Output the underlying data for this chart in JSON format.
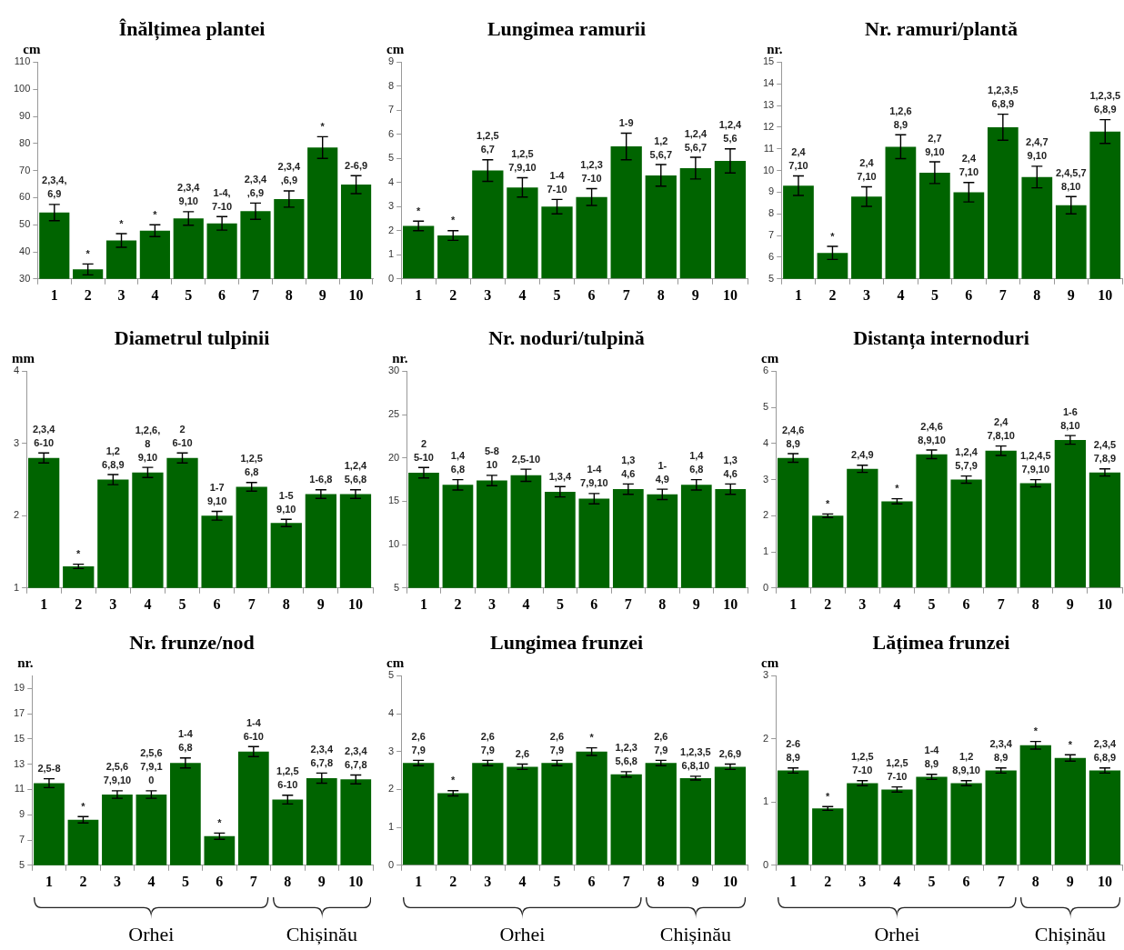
{
  "chart_data": [
    {
      "type": "bar",
      "title": "Înălțimea plantei",
      "ylabel": "cm",
      "categories": [
        "1",
        "2",
        "3",
        "4",
        "5",
        "6",
        "7",
        "8",
        "9",
        "10"
      ],
      "color": "#006400",
      "values": [
        54.5,
        33.5,
        44.2,
        47.8,
        52.3,
        50.5,
        55,
        59.5,
        78.5,
        64.8
      ],
      "errors": [
        3,
        2,
        2.5,
        2.2,
        2.5,
        2.5,
        3,
        3,
        4,
        3.3
      ],
      "annotations": [
        {
          "text": "2,3,4,\n6,9",
          "x": "1",
          "y": 54.5
        },
        {
          "text": "*",
          "x": "2",
          "y": 33.5
        },
        {
          "text": "*",
          "x": "3",
          "y": 44.2
        },
        {
          "text": "*",
          "x": "4",
          "y": 47.8
        },
        {
          "text": "2,3,4\n9,10",
          "x": "5",
          "y": 52.3
        },
        {
          "text": "1-4,\n7-10",
          "x": "6",
          "y": 50.5
        },
        {
          "text": "2,3,4\n,6,9",
          "x": "7",
          "y": 55
        },
        {
          "text": "2,3,4\n,6,9",
          "x": "8",
          "y": 59.5
        },
        {
          "text": "*",
          "x": "9",
          "y": 78.5
        },
        {
          "text": "2-6,9",
          "x": "10",
          "y": 64.8
        }
      ],
      "ylim": [
        30,
        110
      ],
      "yticks": [
        30,
        40,
        50,
        60,
        70,
        80,
        90,
        100,
        110
      ]
    },
    {
      "type": "bar",
      "title": "Lungimea ramurii",
      "ylabel": "cm",
      "categories": [
        "1",
        "2",
        "3",
        "4",
        "5",
        "6",
        "7",
        "8",
        "9",
        "10"
      ],
      "color": "#006400",
      "values": [
        2.2,
        1.8,
        4.5,
        3.8,
        3.0,
        3.4,
        5.5,
        4.3,
        4.6,
        4.9
      ],
      "errors": [
        0.2,
        0.2,
        0.45,
        0.4,
        0.3,
        0.35,
        0.55,
        0.45,
        0.45,
        0.5
      ],
      "annotations": [
        {
          "text": "*",
          "x": "1",
          "y": 2.2
        },
        {
          "text": "*",
          "x": "2",
          "y": 1.8
        },
        {
          "text": "1,2,5\n6,7",
          "x": "3",
          "y": 4.5
        },
        {
          "text": "1,2,5\n7,9,10",
          "x": "4",
          "y": 3.8
        },
        {
          "text": "1-4\n7-10",
          "x": "5",
          "y": 3.0
        },
        {
          "text": "1,2,3\n7-10",
          "x": "6",
          "y": 3.4
        },
        {
          "text": "1-9",
          "x": "7",
          "y": 5.5
        },
        {
          "text": "1,2\n5,6,7",
          "x": "8",
          "y": 4.3
        },
        {
          "text": "1,2,4\n5,6,7",
          "x": "9",
          "y": 4.6
        },
        {
          "text": "1,2,4\n5,6",
          "x": "10",
          "y": 4.9
        }
      ],
      "ylim": [
        0,
        9
      ],
      "yticks": [
        0,
        1,
        2,
        3,
        4,
        5,
        6,
        7,
        8,
        9
      ]
    },
    {
      "type": "bar",
      "title": "Nr. ramuri/plantă",
      "ylabel": "nr.",
      "categories": [
        "1",
        "2",
        "3",
        "4",
        "5",
        "6",
        "7",
        "8",
        "9",
        "10"
      ],
      "color": "#006400",
      "values": [
        9.3,
        6.2,
        8.8,
        11.1,
        9.9,
        9.0,
        12.0,
        9.7,
        8.4,
        11.8
      ],
      "errors": [
        0.45,
        0.3,
        0.45,
        0.55,
        0.5,
        0.45,
        0.6,
        0.5,
        0.4,
        0.55
      ],
      "annotations": [
        {
          "text": "2,4\n7,10",
          "x": "1",
          "y": 9.3
        },
        {
          "text": "*",
          "x": "2",
          "y": 6.2
        },
        {
          "text": "2,4\n7,10",
          "x": "3",
          "y": 8.8
        },
        {
          "text": "1,2,6\n8,9",
          "x": "4",
          "y": 11.1
        },
        {
          "text": "2,7\n9,10",
          "x": "5",
          "y": 9.9
        },
        {
          "text": "2,4\n7,10",
          "x": "6",
          "y": 9.0
        },
        {
          "text": "1,2,3,5\n6,8,9",
          "x": "7",
          "y": 12.0
        },
        {
          "text": "2,4,7\n9,10",
          "x": "8",
          "y": 9.7
        },
        {
          "text": "2,4,5,7\n8,10",
          "x": "9",
          "y": 8.4
        },
        {
          "text": "1,2,3,5\n6,8,9",
          "x": "10",
          "y": 11.8
        }
      ],
      "ylim": [
        5,
        15
      ],
      "yticks": [
        5,
        6,
        7,
        8,
        9,
        10,
        11,
        12,
        13,
        14,
        15
      ]
    },
    {
      "type": "bar",
      "title": "Diametrul tulpinii",
      "ylabel": "mm",
      "categories": [
        "1",
        "2",
        "3",
        "4",
        "5",
        "6",
        "7",
        "8",
        "9",
        "10"
      ],
      "color": "#006400",
      "values": [
        2.8,
        1.3,
        2.5,
        2.6,
        2.8,
        2.0,
        2.4,
        1.9,
        2.3,
        2.3
      ],
      "errors": [
        0.07,
        0.03,
        0.07,
        0.07,
        0.07,
        0.06,
        0.06,
        0.05,
        0.06,
        0.06
      ],
      "annotations": [
        {
          "text": "2,3,4\n6-10",
          "x": "1",
          "y": 2.8
        },
        {
          "text": "*",
          "x": "2",
          "y": 1.3
        },
        {
          "text": "1,2\n6,8,9",
          "x": "3",
          "y": 2.5
        },
        {
          "text": "1,2,6,\n8\n9,10",
          "x": "4",
          "y": 2.6
        },
        {
          "text": "2\n6-10",
          "x": "5",
          "y": 2.8
        },
        {
          "text": "1-7\n9,10",
          "x": "6",
          "y": 2.0
        },
        {
          "text": "1,2,5\n6,8",
          "x": "7",
          "y": 2.4
        },
        {
          "text": "1-5\n9,10",
          "x": "8",
          "y": 1.9
        },
        {
          "text": "1-6,8",
          "x": "9",
          "y": 2.3
        },
        {
          "text": "1,2,4\n5,6,8",
          "x": "10",
          "y": 2.3
        }
      ],
      "ylim": [
        1,
        4
      ],
      "yticks": [
        1,
        2,
        3,
        4
      ]
    },
    {
      "type": "bar",
      "title": "Nr. noduri/tulpină",
      "ylabel": "nr.",
      "categories": [
        "1",
        "2",
        "3",
        "4",
        "5",
        "6",
        "7",
        "8",
        "9",
        "10"
      ],
      "color": "#006400",
      "values": [
        18.3,
        16.9,
        17.4,
        18.0,
        16.1,
        15.3,
        16.4,
        15.8,
        16.9,
        16.4
      ],
      "errors": [
        0.6,
        0.6,
        0.6,
        0.7,
        0.6,
        0.6,
        0.6,
        0.6,
        0.6,
        0.6
      ],
      "annotations": [
        {
          "text": "2\n5-10",
          "x": "1",
          "y": 18.3
        },
        {
          "text": "1,4\n6,8",
          "x": "2",
          "y": 16.9
        },
        {
          "text": "5-8\n10",
          "x": "3",
          "y": 17.4
        },
        {
          "text": "2,5-10",
          "x": "4",
          "y": 18.0
        },
        {
          "text": "1,3,4",
          "x": "5",
          "y": 16.1
        },
        {
          "text": "1-4\n7,9,10",
          "x": "6",
          "y": 15.3
        },
        {
          "text": "1,3\n4,6",
          "x": "7",
          "y": 16.4
        },
        {
          "text": "1-\n4,9",
          "x": "8",
          "y": 15.8
        },
        {
          "text": "1,4\n6,8",
          "x": "9",
          "y": 16.9
        },
        {
          "text": "1,3\n4,6",
          "x": "10",
          "y": 16.4
        }
      ],
      "ylim": [
        5,
        30
      ],
      "yticks": [
        5,
        10,
        15,
        20,
        25,
        30
      ]
    },
    {
      "type": "bar",
      "title": "Distanța internoduri",
      "ylabel": "cm",
      "categories": [
        "1",
        "2",
        "3",
        "4",
        "5",
        "6",
        "7",
        "8",
        "9",
        "10"
      ],
      "color": "#006400",
      "values": [
        3.6,
        2.0,
        3.3,
        2.4,
        3.7,
        3.0,
        3.8,
        2.9,
        4.1,
        3.2
      ],
      "errors": [
        0.12,
        0.05,
        0.1,
        0.07,
        0.12,
        0.1,
        0.13,
        0.1,
        0.12,
        0.1
      ],
      "annotations": [
        {
          "text": "2,4,6\n8,9",
          "x": "1",
          "y": 3.6
        },
        {
          "text": "*",
          "x": "2",
          "y": 2.0
        },
        {
          "text": "2,4,9",
          "x": "3",
          "y": 3.3
        },
        {
          "text": "*",
          "x": "4",
          "y": 2.4
        },
        {
          "text": "2,4,6\n8,9,10",
          "x": "5",
          "y": 3.7
        },
        {
          "text": "1,2,4\n5,7,9",
          "x": "6",
          "y": 3.0
        },
        {
          "text": "2,4\n7,8,10",
          "x": "7",
          "y": 3.8
        },
        {
          "text": "1,2,4,5\n7,9,10",
          "x": "8",
          "y": 2.9
        },
        {
          "text": "1-6\n8,10",
          "x": "9",
          "y": 4.1
        },
        {
          "text": "2,4,5\n7,8,9",
          "x": "10",
          "y": 3.2
        }
      ],
      "ylim": [
        0,
        6
      ],
      "yticks": [
        0,
        1,
        2,
        3,
        4,
        5,
        6
      ]
    },
    {
      "type": "bar",
      "title": "Nr. frunze/nod",
      "ylabel": "nr.",
      "categories": [
        "1",
        "2",
        "3",
        "4",
        "5",
        "6",
        "7",
        "8",
        "9",
        "10"
      ],
      "color": "#006400",
      "values": [
        11.5,
        8.6,
        10.6,
        10.6,
        13.1,
        7.3,
        14.0,
        10.2,
        11.9,
        11.8
      ],
      "errors": [
        0.35,
        0.25,
        0.3,
        0.3,
        0.4,
        0.25,
        0.4,
        0.35,
        0.4,
        0.35
      ],
      "annotations": [
        {
          "text": "2,5-8",
          "x": "1",
          "y": 11.5
        },
        {
          "text": "*",
          "x": "2",
          "y": 8.6
        },
        {
          "text": "2,5,6\n7,9,10",
          "x": "3",
          "y": 10.6
        },
        {
          "text": "2,5,6\n7,9,1\n0",
          "x": "4",
          "y": 10.6
        },
        {
          "text": "1-4\n6,8",
          "x": "5",
          "y": 13.1
        },
        {
          "text": "*",
          "x": "6",
          "y": 7.3
        },
        {
          "text": "1-4\n6-10",
          "x": "7",
          "y": 14.0
        },
        {
          "text": "1,2,5\n6-10",
          "x": "8",
          "y": 10.2
        },
        {
          "text": "2,3,4\n6,7,8",
          "x": "9",
          "y": 11.9
        },
        {
          "text": "2,3,4\n6,7,8",
          "x": "10",
          "y": 11.8
        },
        "Orhei",
        "Chișinău"
      ],
      "ylim": [
        5,
        20
      ],
      "yticks": [
        5,
        7,
        9,
        11,
        13,
        15,
        17,
        19
      ]
    },
    {
      "type": "bar",
      "title": "Lungimea frunzei",
      "ylabel": "cm",
      "categories": [
        "1",
        "2",
        "3",
        "4",
        "5",
        "6",
        "7",
        "8",
        "9",
        "10"
      ],
      "color": "#006400",
      "values": [
        2.7,
        1.9,
        2.7,
        2.6,
        2.7,
        3.0,
        2.4,
        2.7,
        2.3,
        2.6
      ],
      "errors": [
        0.07,
        0.07,
        0.07,
        0.07,
        0.07,
        0.1,
        0.07,
        0.07,
        0.05,
        0.07
      ],
      "annotations": [
        {
          "text": "2,6\n7,9",
          "x": "1",
          "y": 2.7
        },
        {
          "text": "*",
          "x": "2",
          "y": 1.9
        },
        {
          "text": "2,6\n7,9",
          "x": "3",
          "y": 2.7
        },
        {
          "text": "2,6",
          "x": "4",
          "y": 2.6
        },
        {
          "text": "2,6\n7,9",
          "x": "5",
          "y": 2.7
        },
        {
          "text": "*",
          "x": "6",
          "y": 3.0
        },
        {
          "text": "1,2,3\n5,6,8",
          "x": "7",
          "y": 2.4
        },
        {
          "text": "2,6\n7,9",
          "x": "8",
          "y": 2.7
        },
        {
          "text": "1,2,3,5\n6,8,10",
          "x": "9",
          "y": 2.3
        },
        {
          "text": "2,6,9",
          "x": "10",
          "y": 2.6
        },
        "Orhei",
        "Chișinău"
      ],
      "ylim": [
        0,
        5
      ],
      "yticks": [
        0,
        1,
        2,
        3,
        4,
        5
      ]
    },
    {
      "type": "bar",
      "title": "Lățimea frunzei",
      "ylabel": "cm",
      "categories": [
        "1",
        "2",
        "3",
        "4",
        "5",
        "6",
        "7",
        "8",
        "9",
        "10"
      ],
      "color": "#006400",
      "values": [
        1.5,
        0.9,
        1.3,
        1.2,
        1.4,
        1.3,
        1.5,
        1.9,
        1.7,
        1.5
      ],
      "errors": [
        0.04,
        0.03,
        0.04,
        0.04,
        0.04,
        0.04,
        0.04,
        0.06,
        0.05,
        0.04
      ],
      "annotations": [
        {
          "text": "2-6\n8,9",
          "x": "1",
          "y": 1.5
        },
        {
          "text": "*",
          "x": "2",
          "y": 0.9
        },
        {
          "text": "1,2,5\n7-10",
          "x": "3",
          "y": 1.3
        },
        {
          "text": "1,2,5\n7-10",
          "x": "4",
          "y": 1.2
        },
        {
          "text": "1-4\n8,9",
          "x": "5",
          "y": 1.4
        },
        {
          "text": "1,2\n8,9,10",
          "x": "6",
          "y": 1.3
        },
        {
          "text": "2,3,4\n8,9",
          "x": "7",
          "y": 1.5
        },
        {
          "text": "*",
          "x": "8",
          "y": 1.9
        },
        {
          "text": "*",
          "x": "9",
          "y": 1.7
        },
        {
          "text": "2,3,4\n6,8,9",
          "x": "10",
          "y": 1.5
        },
        "Orhei",
        "Chișinău"
      ],
      "ylim": [
        0,
        3
      ],
      "yticks": [
        0,
        1,
        2,
        3
      ]
    }
  ]
}
